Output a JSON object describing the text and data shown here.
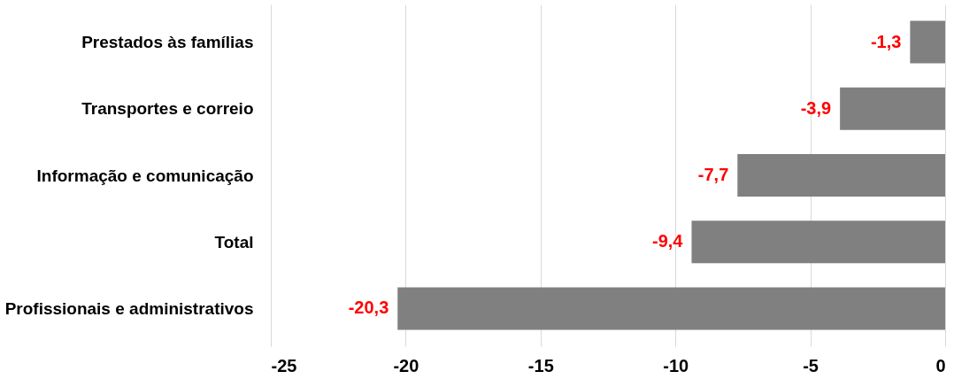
{
  "chart_data": {
    "type": "bar",
    "orientation": "horizontal",
    "categories": [
      "Prestados às famílias",
      "Transportes e correio",
      "Informação e comunicação",
      "Total",
      "Profissionais e administrativos"
    ],
    "values": [
      -1.3,
      -3.9,
      -7.7,
      -9.4,
      -20.3
    ],
    "value_labels": [
      "-1,3",
      "-3,9",
      "-7,7",
      "-9,4",
      "-20,3"
    ],
    "color": "#808080",
    "xlim": [
      -25,
      0
    ],
    "xticks": [
      -25,
      -20,
      -15,
      -10,
      -5,
      0
    ],
    "grid": "x"
  }
}
